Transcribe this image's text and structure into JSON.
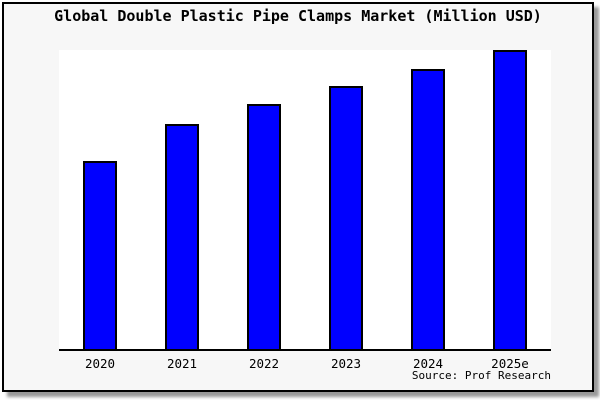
{
  "chart_data": {
    "type": "bar",
    "title": "Global Double Plastic Pipe Clamps Market (Million USD)",
    "categories": [
      "2020",
      "2021",
      "2022",
      "2023",
      "2024",
      "2025e"
    ],
    "values": [
      62.9,
      75.4,
      81.8,
      87.9,
      93.8,
      100
    ],
    "values_note": "No y-axis or data labels shown in image; values are relative bar heights as percent of tallest bar (2025e = 100)",
    "xlabel": "",
    "ylabel": "",
    "y_axis_visible": false,
    "gridlines": false,
    "legend_position": "none",
    "bar_color": "#0000ff",
    "bar_edge_color": "#000000"
  },
  "source": {
    "label": "Source: Prof Research"
  },
  "colors": {
    "figure_background": "#f7f7f7",
    "plot_background": "#ffffff",
    "frame_border": "#000000",
    "shadow": "#999999",
    "text": "#000000"
  }
}
